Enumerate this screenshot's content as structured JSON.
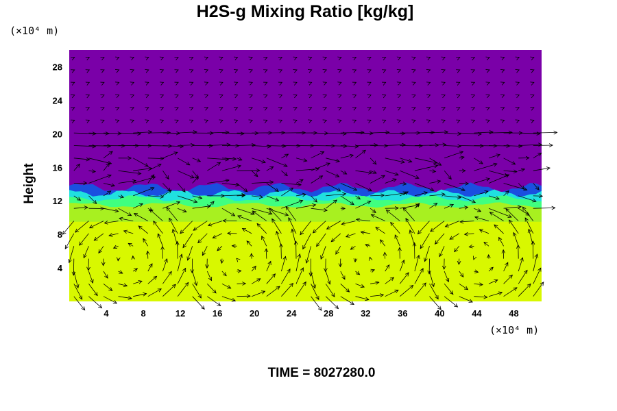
{
  "chart_data": {
    "type": "heatmap",
    "title": "H2S-g Mixing Ratio [kg/kg]",
    "ylabel": "Height",
    "xlabel": "",
    "x_unit": "(×10⁴ m)",
    "y_unit": "(×10⁴ m)",
    "xlim": [
      0,
      51
    ],
    "ylim": [
      0,
      30
    ],
    "xticks": [
      4,
      8,
      12,
      16,
      20,
      24,
      28,
      32,
      36,
      40,
      44,
      48
    ],
    "yticks": [
      4,
      8,
      12,
      16,
      20,
      24,
      28
    ],
    "layers": [
      {
        "name": "upper",
        "y_range": [
          13.5,
          30
        ],
        "color": "#7a00a8"
      },
      {
        "name": "transition-blue",
        "y_range": [
          12.6,
          13.6
        ],
        "color": "#1a4fe0"
      },
      {
        "name": "transition-cyan",
        "y_range": [
          12.0,
          12.9
        ],
        "color": "#20e0e0"
      },
      {
        "name": "transition-green",
        "y_range": [
          11.2,
          12.3
        ],
        "color": "#40ff80"
      },
      {
        "name": "lower-yellowgreen",
        "y_range": [
          9.5,
          11.5
        ],
        "color": "#a8f020"
      },
      {
        "name": "lower",
        "y_range": [
          0,
          9.5
        ],
        "color": "#d8f800"
      }
    ],
    "vector_field": {
      "upper_flow": "jet 15–20 with eastward arrows, turbulent 13–18",
      "lower_flow": "convective cells below 10 with circulation centers near x ≈ 6, 18, 32, 44"
    },
    "colors": {
      "upper": "#7a00a8",
      "lower": "#d8f800",
      "arrow": "#000000"
    },
    "footer": "TIME = 8027280.0"
  }
}
